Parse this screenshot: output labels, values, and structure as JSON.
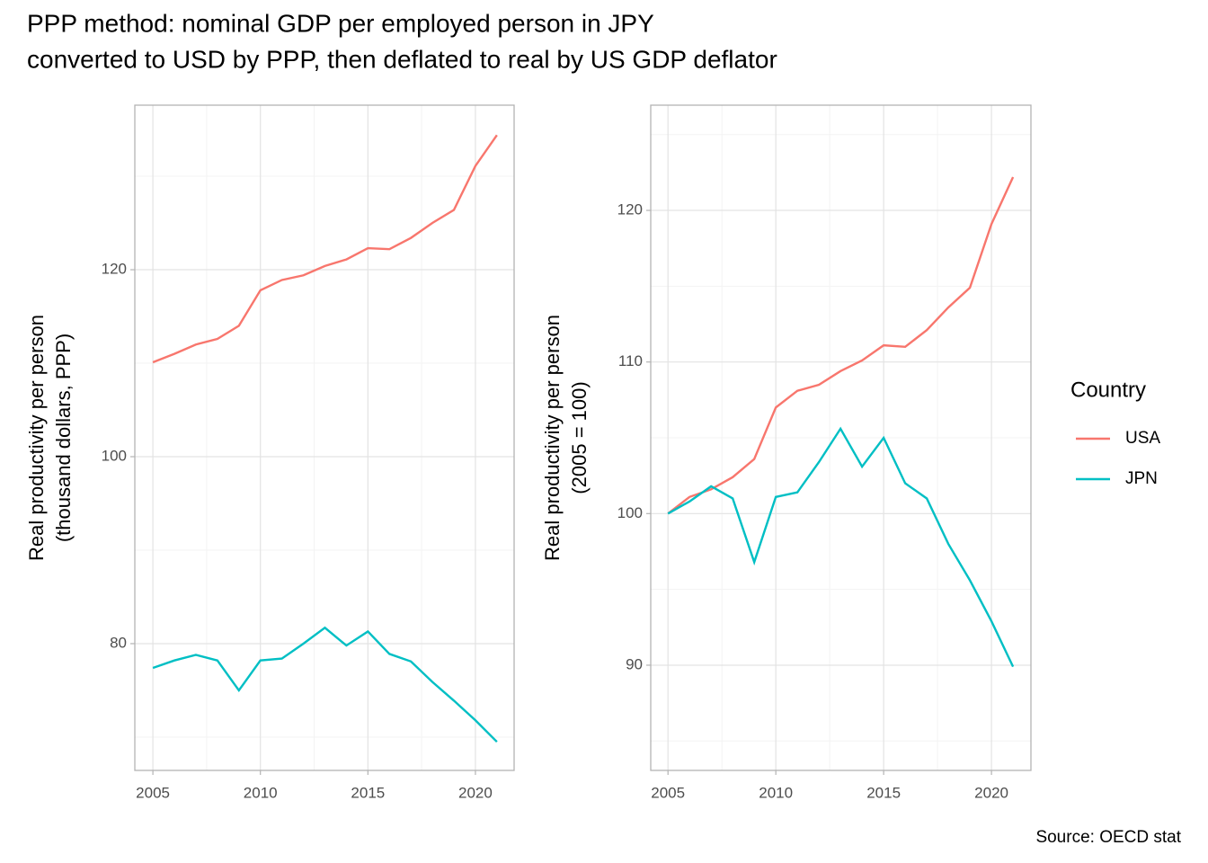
{
  "title": [
    "PPP method: nominal GDP per employed person in JPY",
    "converted to USD by PPP, then deflated to real by US GDP deflator"
  ],
  "caption": "Source: OECD stat",
  "legend_title": "Country",
  "legend_position": "right",
  "chart_data": [
    {
      "type": "line",
      "ylabel": [
        "Real productivity per person",
        "(thousand dollars, PPP)"
      ],
      "x": [
        2005,
        2006,
        2007,
        2008,
        2009,
        2010,
        2011,
        2012,
        2013,
        2014,
        2015,
        2016,
        2017,
        2018,
        2019,
        2020,
        2021
      ],
      "xlim": [
        2004.16,
        2021.8
      ],
      "xticks": [
        2005,
        2010,
        2015,
        2020
      ],
      "ylim": [
        66.44,
        137.6
      ],
      "yticks": [
        80,
        100,
        120
      ],
      "grid": true,
      "series": [
        {
          "name": "USA",
          "color": "#F8766D",
          "values": [
            110.1,
            111.0,
            112.0,
            112.6,
            114.0,
            117.8,
            118.9,
            119.4,
            120.4,
            121.1,
            122.3,
            122.2,
            123.4,
            125.0,
            126.4,
            131.1,
            134.4
          ]
        },
        {
          "name": "JPN",
          "color": "#00BFC4",
          "values": [
            77.4,
            78.2,
            78.8,
            78.2,
            75.0,
            78.2,
            78.4,
            80.0,
            81.7,
            79.8,
            81.3,
            78.9,
            78.1,
            75.9,
            73.9,
            71.8,
            69.5
          ]
        }
      ]
    },
    {
      "type": "line",
      "ylabel": [
        "Real productivity per person",
        "(2005 = 100)"
      ],
      "x": [
        2005,
        2006,
        2007,
        2008,
        2009,
        2010,
        2011,
        2012,
        2013,
        2014,
        2015,
        2016,
        2017,
        2018,
        2019,
        2020,
        2021
      ],
      "xlim": [
        2004.2,
        2021.83
      ],
      "xticks": [
        2005,
        2010,
        2015,
        2020
      ],
      "ylim": [
        83.06,
        126.94
      ],
      "yticks": [
        90,
        100,
        110,
        120
      ],
      "grid": true,
      "series": [
        {
          "name": "USA",
          "color": "#F8766D",
          "values": [
            100,
            101.1,
            101.6,
            102.4,
            103.6,
            107.0,
            108.1,
            108.5,
            109.4,
            110.1,
            111.1,
            111.0,
            112.1,
            113.6,
            114.9,
            119.1,
            122.2
          ]
        },
        {
          "name": "JPN",
          "color": "#00BFC4",
          "values": [
            100,
            100.8,
            101.8,
            101.0,
            96.8,
            101.1,
            101.4,
            103.4,
            105.6,
            103.1,
            105.0,
            102.0,
            101.0,
            98.0,
            95.6,
            92.9,
            89.9
          ]
        }
      ]
    }
  ]
}
